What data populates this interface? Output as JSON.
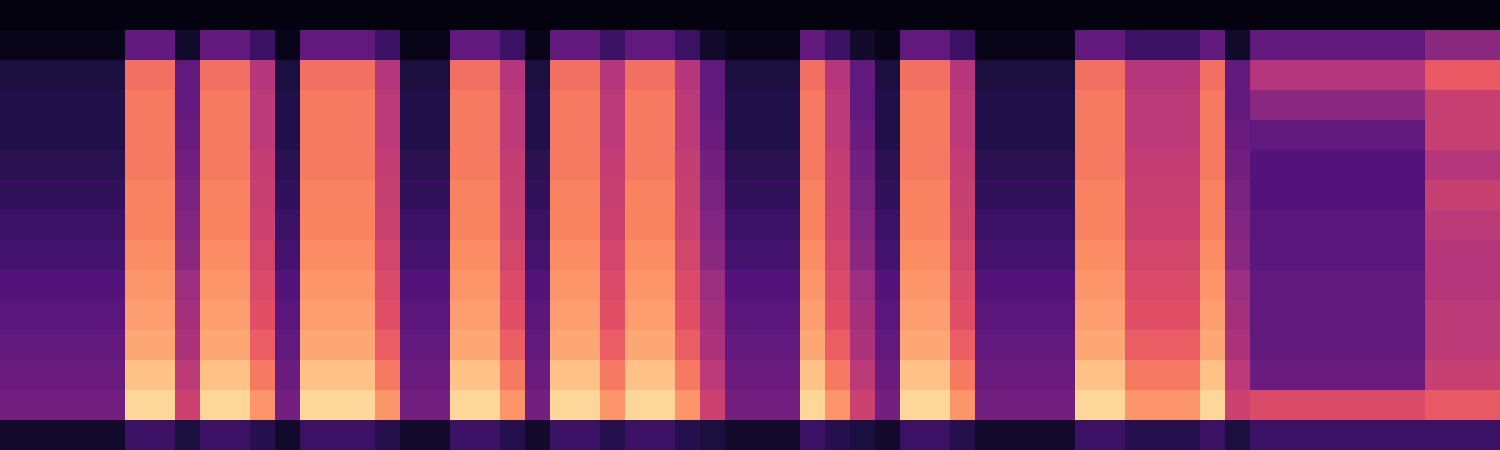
{
  "chart_data": {
    "type": "heatmap",
    "tick_labels": false,
    "grid": false,
    "zlim": [
      0,
      100
    ],
    "cells": [
      [
        2,
        2,
        2,
        2,
        2,
        2,
        2,
        2,
        2,
        2,
        2,
        2,
        2,
        2,
        2,
        2,
        2,
        2,
        2,
        2,
        2,
        2,
        2,
        2,
        2,
        2,
        2,
        2,
        2,
        2,
        2,
        2,
        2,
        2,
        2,
        2,
        2,
        2,
        2,
        2,
        2,
        2,
        2,
        2,
        2,
        2,
        2,
        2,
        2,
        2,
        2,
        2,
        2,
        2,
        2,
        2,
        2,
        2,
        2,
        2
      ],
      [
        4,
        4,
        4,
        4,
        4,
        30,
        30,
        8,
        30,
        30,
        20,
        4,
        30,
        30,
        30,
        20,
        4,
        4,
        30,
        30,
        20,
        4,
        30,
        30,
        20,
        30,
        30,
        20,
        8,
        4,
        4,
        4,
        30,
        20,
        8,
        4,
        30,
        30,
        20,
        4,
        4,
        4,
        4,
        30,
        30,
        20,
        20,
        20,
        30,
        8,
        30,
        30,
        30,
        30,
        30,
        30,
        30,
        40,
        40,
        40
      ],
      [
        12,
        12,
        12,
        12,
        12,
        70,
        70,
        30,
        70,
        70,
        50,
        12,
        70,
        70,
        70,
        50,
        12,
        12,
        70,
        70,
        50,
        12,
        70,
        70,
        50,
        70,
        70,
        50,
        30,
        12,
        12,
        12,
        70,
        50,
        30,
        12,
        70,
        70,
        50,
        12,
        12,
        12,
        12,
        70,
        70,
        50,
        50,
        50,
        70,
        30,
        50,
        50,
        50,
        50,
        50,
        50,
        50,
        65,
        65,
        65
      ],
      [
        14,
        14,
        14,
        14,
        14,
        72,
        72,
        30,
        72,
        72,
        52,
        14,
        72,
        72,
        72,
        52,
        14,
        14,
        72,
        72,
        52,
        14,
        72,
        72,
        52,
        72,
        72,
        52,
        30,
        14,
        14,
        14,
        72,
        52,
        30,
        14,
        72,
        72,
        52,
        14,
        14,
        14,
        14,
        72,
        72,
        52,
        52,
        52,
        72,
        30,
        40,
        40,
        40,
        40,
        40,
        40,
        40,
        55,
        55,
        55
      ],
      [
        14,
        14,
        14,
        14,
        14,
        72,
        72,
        32,
        72,
        72,
        52,
        14,
        72,
        72,
        72,
        52,
        14,
        14,
        72,
        72,
        52,
        14,
        72,
        72,
        52,
        72,
        72,
        52,
        32,
        14,
        14,
        14,
        72,
        52,
        32,
        14,
        72,
        72,
        52,
        14,
        14,
        14,
        14,
        72,
        72,
        52,
        52,
        52,
        72,
        32,
        30,
        30,
        30,
        30,
        30,
        30,
        30,
        55,
        55,
        55
      ],
      [
        16,
        16,
        16,
        16,
        16,
        72,
        72,
        34,
        72,
        72,
        54,
        16,
        72,
        72,
        72,
        54,
        16,
        16,
        72,
        72,
        54,
        16,
        72,
        72,
        54,
        72,
        72,
        54,
        34,
        16,
        16,
        16,
        72,
        54,
        34,
        16,
        72,
        72,
        54,
        16,
        16,
        16,
        16,
        72,
        72,
        54,
        54,
        54,
        72,
        34,
        26,
        26,
        26,
        26,
        26,
        26,
        26,
        50,
        50,
        50
      ],
      [
        18,
        18,
        18,
        18,
        18,
        74,
        74,
        36,
        74,
        74,
        55,
        18,
        74,
        74,
        74,
        55,
        18,
        18,
        74,
        74,
        55,
        18,
        74,
        74,
        55,
        74,
        74,
        55,
        36,
        18,
        18,
        18,
        74,
        55,
        36,
        18,
        74,
        74,
        55,
        18,
        18,
        18,
        18,
        74,
        74,
        55,
        55,
        55,
        74,
        36,
        26,
        26,
        26,
        26,
        26,
        26,
        26,
        55,
        55,
        55
      ],
      [
        20,
        20,
        20,
        20,
        20,
        74,
        74,
        38,
        74,
        74,
        56,
        20,
        74,
        74,
        74,
        56,
        20,
        20,
        74,
        74,
        56,
        20,
        74,
        74,
        56,
        74,
        74,
        56,
        38,
        20,
        20,
        20,
        74,
        56,
        38,
        20,
        74,
        74,
        56,
        20,
        20,
        20,
        20,
        74,
        74,
        56,
        56,
        56,
        74,
        38,
        28,
        28,
        28,
        28,
        28,
        28,
        28,
        52,
        52,
        52
      ],
      [
        22,
        22,
        22,
        22,
        22,
        76,
        76,
        40,
        76,
        76,
        58,
        22,
        76,
        76,
        76,
        58,
        22,
        22,
        76,
        76,
        58,
        22,
        76,
        76,
        58,
        76,
        76,
        58,
        40,
        22,
        22,
        22,
        76,
        58,
        40,
        22,
        76,
        76,
        58,
        22,
        22,
        22,
        22,
        76,
        76,
        58,
        58,
        58,
        76,
        40,
        28,
        28,
        28,
        28,
        28,
        28,
        28,
        50,
        50,
        50
      ],
      [
        26,
        26,
        26,
        26,
        26,
        78,
        78,
        44,
        78,
        78,
        60,
        26,
        78,
        78,
        78,
        60,
        26,
        26,
        78,
        78,
        60,
        26,
        78,
        78,
        60,
        78,
        78,
        60,
        44,
        26,
        26,
        26,
        78,
        60,
        44,
        26,
        78,
        78,
        60,
        26,
        26,
        26,
        26,
        78,
        78,
        60,
        60,
        60,
        78,
        44,
        30,
        30,
        30,
        30,
        30,
        30,
        30,
        50,
        50,
        50
      ],
      [
        28,
        28,
        28,
        28,
        28,
        80,
        80,
        46,
        80,
        80,
        62,
        28,
        80,
        80,
        80,
        62,
        28,
        28,
        80,
        80,
        62,
        28,
        80,
        80,
        62,
        80,
        80,
        62,
        46,
        28,
        28,
        28,
        80,
        62,
        46,
        28,
        80,
        80,
        62,
        28,
        28,
        28,
        28,
        80,
        80,
        62,
        62,
        62,
        80,
        46,
        30,
        30,
        30,
        30,
        30,
        30,
        30,
        52,
        52,
        52
      ],
      [
        30,
        30,
        30,
        30,
        30,
        82,
        82,
        48,
        82,
        82,
        66,
        30,
        82,
        82,
        82,
        66,
        30,
        30,
        82,
        82,
        66,
        30,
        82,
        82,
        66,
        82,
        82,
        66,
        48,
        30,
        30,
        30,
        82,
        66,
        48,
        30,
        82,
        82,
        66,
        30,
        30,
        30,
        30,
        82,
        82,
        66,
        66,
        66,
        82,
        48,
        30,
        30,
        30,
        30,
        30,
        30,
        30,
        52,
        52,
        52
      ],
      [
        32,
        32,
        32,
        32,
        32,
        88,
        88,
        52,
        88,
        88,
        72,
        32,
        88,
        88,
        88,
        72,
        32,
        32,
        88,
        88,
        72,
        32,
        88,
        88,
        72,
        88,
        88,
        72,
        52,
        32,
        32,
        32,
        88,
        72,
        52,
        32,
        88,
        88,
        72,
        32,
        32,
        32,
        32,
        88,
        88,
        72,
        72,
        72,
        88,
        52,
        32,
        32,
        32,
        32,
        32,
        32,
        32,
        55,
        55,
        55
      ],
      [
        34,
        34,
        34,
        34,
        34,
        92,
        92,
        56,
        92,
        92,
        78,
        34,
        92,
        92,
        92,
        78,
        34,
        34,
        92,
        92,
        78,
        34,
        92,
        92,
        78,
        92,
        92,
        78,
        56,
        34,
        34,
        34,
        92,
        78,
        56,
        34,
        92,
        92,
        78,
        34,
        34,
        34,
        34,
        92,
        92,
        78,
        78,
        78,
        92,
        56,
        60,
        60,
        60,
        60,
        60,
        60,
        60,
        65,
        65,
        65
      ],
      [
        8,
        8,
        8,
        8,
        8,
        20,
        20,
        12,
        20,
        20,
        15,
        8,
        20,
        20,
        20,
        15,
        8,
        8,
        20,
        20,
        15,
        8,
        20,
        20,
        15,
        20,
        20,
        15,
        12,
        8,
        8,
        8,
        20,
        15,
        12,
        8,
        20,
        20,
        15,
        8,
        8,
        8,
        8,
        20,
        20,
        15,
        15,
        15,
        20,
        12,
        20,
        20,
        20,
        20,
        20,
        20,
        20,
        20,
        20,
        20
      ]
    ]
  }
}
